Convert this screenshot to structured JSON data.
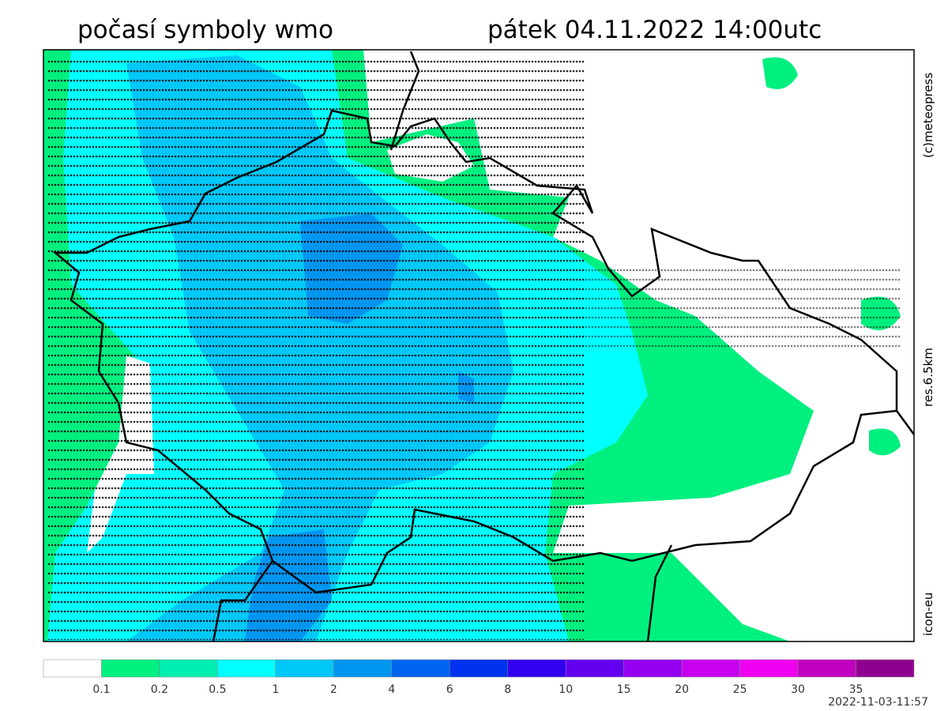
{
  "header": {
    "left": "počasí symboly wmo",
    "right": "pátek 04.11.2022 14:00utc"
  },
  "side": {
    "copyright": "(c)meteopress",
    "resolution": "res.6.5km",
    "model": "icon-eu"
  },
  "legend": {
    "colors": [
      "#ffffff",
      "#00f080",
      "#00eeb0",
      "#00ffff",
      "#00c8f8",
      "#0096f0",
      "#0064f0",
      "#0032f0",
      "#3200f0",
      "#6400f0",
      "#9600f0",
      "#c800f0",
      "#f000f0",
      "#c000c0",
      "#900090"
    ],
    "labels": [
      0.1,
      0.2,
      0.5,
      1,
      2,
      4,
      6,
      8,
      10,
      15,
      20,
      25,
      30,
      35
    ]
  },
  "timestamp": "2022-11-03-11:57"
}
